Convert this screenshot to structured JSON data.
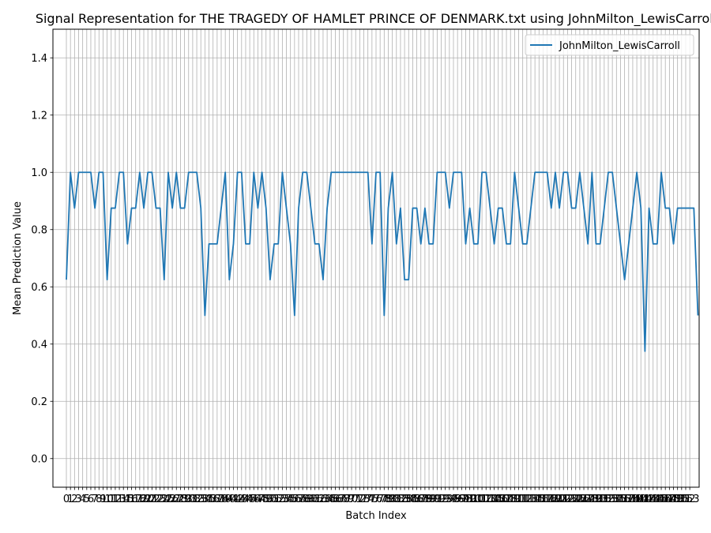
{
  "chart_data": {
    "type": "line",
    "title": "Signal Representation for THE TRAGEDY OF HAMLET PRINCE OF DENMARK.txt using JohnMilton_LewisCarroll",
    "xlabel": "Batch Index",
    "ylabel": "Mean Prediction Value",
    "xlim": [
      -3.3,
      155.3
    ],
    "ylim": [
      -0.1,
      1.5
    ],
    "x_ticks": [
      0,
      1,
      2,
      3,
      4,
      5,
      6,
      7,
      8,
      9,
      10,
      11,
      12,
      13,
      14,
      15,
      16,
      17,
      18,
      19,
      20,
      21,
      22,
      23,
      24,
      25,
      26,
      27,
      28,
      29,
      30,
      31,
      32,
      33,
      34,
      35,
      36,
      37,
      38,
      39,
      40,
      41,
      42,
      43,
      44,
      45,
      46,
      47,
      48,
      49,
      50,
      51,
      52,
      53,
      54,
      55,
      56,
      57,
      58,
      59,
      60,
      61,
      62,
      63,
      64,
      65,
      66,
      67,
      68,
      69,
      70,
      71,
      72,
      73,
      74,
      75,
      76,
      77,
      78,
      79,
      80,
      81,
      82,
      83,
      84,
      85,
      86,
      87,
      88,
      89,
      90,
      91,
      92,
      93,
      94,
      95,
      96,
      97,
      98,
      99,
      100,
      101,
      102,
      103,
      104,
      105,
      106,
      107,
      108,
      109,
      110,
      111,
      112,
      113,
      114,
      115,
      116,
      117,
      118,
      119,
      120,
      121,
      122,
      123,
      124,
      125,
      126,
      127,
      128,
      129,
      130,
      131,
      132,
      133,
      134,
      135,
      136,
      137,
      138,
      139,
      140,
      141,
      142,
      143,
      144,
      145,
      146,
      147,
      148,
      149,
      150,
      151,
      152,
      153
    ],
    "y_ticks": [
      0.0,
      0.2,
      0.4,
      0.6,
      0.8,
      1.0,
      1.2,
      1.4
    ],
    "y_tick_labels": [
      "0.0",
      "0.2",
      "0.4",
      "0.6",
      "0.8",
      "1.0",
      "1.2",
      "1.4"
    ],
    "grid": true,
    "legend_position": "top-right",
    "series": [
      {
        "name": "JohnMilton_LewisCarroll",
        "color": "#1f77b4",
        "values": [
          0.625,
          1.0,
          0.875,
          1.0,
          1.0,
          1.0,
          1.0,
          0.875,
          1.0,
          1.0,
          0.625,
          0.875,
          0.875,
          1.0,
          1.0,
          0.75,
          0.875,
          0.875,
          1.0,
          0.875,
          1.0,
          1.0,
          0.875,
          0.875,
          0.625,
          1.0,
          0.875,
          1.0,
          0.875,
          0.875,
          1.0,
          1.0,
          1.0,
          0.875,
          0.5,
          0.75,
          0.75,
          0.75,
          0.875,
          1.0,
          0.625,
          0.75,
          1.0,
          1.0,
          0.75,
          0.75,
          1.0,
          0.875,
          1.0,
          0.875,
          0.625,
          0.75,
          0.75,
          1.0,
          0.875,
          0.75,
          0.5,
          0.875,
          1.0,
          1.0,
          0.875,
          0.75,
          0.75,
          0.625,
          0.875,
          1.0,
          1.0,
          1.0,
          1.0,
          1.0,
          1.0,
          1.0,
          1.0,
          1.0,
          1.0,
          0.75,
          1.0,
          1.0,
          0.5,
          0.875,
          1.0,
          0.75,
          0.875,
          0.625,
          0.625,
          0.875,
          0.875,
          0.75,
          0.875,
          0.75,
          0.75,
          1.0,
          1.0,
          1.0,
          0.875,
          1.0,
          1.0,
          1.0,
          0.75,
          0.875,
          0.75,
          0.75,
          1.0,
          1.0,
          0.875,
          0.75,
          0.875,
          0.875,
          0.75,
          0.75,
          1.0,
          0.875,
          0.75,
          0.75,
          0.875,
          1.0,
          1.0,
          1.0,
          1.0,
          0.875,
          1.0,
          0.875,
          1.0,
          1.0,
          0.875,
          0.875,
          1.0,
          0.875,
          0.75,
          1.0,
          0.75,
          0.75,
          0.875,
          1.0,
          1.0,
          0.875,
          0.75,
          0.625,
          0.75,
          0.875,
          1.0,
          0.875,
          0.375,
          0.875,
          0.75,
          0.75,
          1.0,
          0.875,
          0.875,
          0.75,
          0.875,
          0.875,
          0.875,
          0.875,
          0.875,
          0.5
        ]
      }
    ]
  }
}
